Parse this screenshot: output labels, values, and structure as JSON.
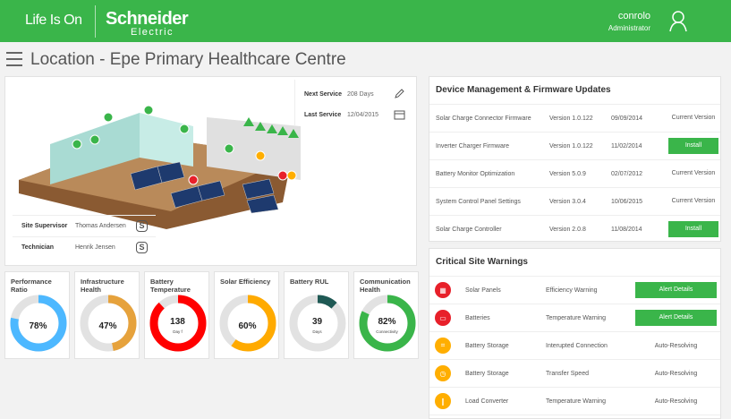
{
  "header": {
    "tagline": "Life Is On",
    "brand": "Schneider",
    "brand_sub": "Electric",
    "user_name": "conrolo",
    "user_role": "Administrator"
  },
  "page": {
    "title": "Location - Epe Primary Healthcare Centre"
  },
  "site": {
    "next_service_label": "Next Service",
    "next_service_value": "208 Days",
    "last_service_label": "Last Service",
    "last_service_value": "12/04/2015",
    "people": [
      {
        "role": "Site Supervisor",
        "name": "Thomas Andersen"
      },
      {
        "role": "Technician",
        "name": "Henrik Jensen"
      }
    ]
  },
  "gauges": [
    {
      "title": "Performance Ratio",
      "value": "78%",
      "fraction": 0.78,
      "color": "#4db8ff",
      "sub": ""
    },
    {
      "title": "Infrastructure Health",
      "value": "47%",
      "fraction": 0.47,
      "color": "#e6a23c",
      "sub": ""
    },
    {
      "title": "Battery Temperature",
      "value": "138",
      "fraction": 0.88,
      "color": "#ff0000",
      "sub": "Day f"
    },
    {
      "title": "Solar Efficiency",
      "value": "60%",
      "fraction": 0.6,
      "color": "#ffaa00",
      "sub": ""
    },
    {
      "title": "Battery RUL",
      "value": "39",
      "fraction": 0.12,
      "color": "#1f5954",
      "sub": "Days"
    },
    {
      "title": "Communication Health",
      "value": "82%",
      "fraction": 0.82,
      "color": "#3ab54a",
      "sub": "Connectivity"
    }
  ],
  "devices": {
    "title": "Device Management & Firmware Updates",
    "rows": [
      {
        "name": "Solar Charge Connector Firmware",
        "version": "Version 1.0.122",
        "date": "09/09/2014",
        "status": "Current Version",
        "action": false
      },
      {
        "name": "Inverter Charger Firmware",
        "version": "Version 1.0.122",
        "date": "11/02/2014",
        "status": "Install",
        "action": true
      },
      {
        "name": "Battery Monitor Optimization",
        "version": "Version 5.0.9",
        "date": "02/07/2012",
        "status": "Current Version",
        "action": false
      },
      {
        "name": "System Control Panel Settings",
        "version": "Version 3.0.4",
        "date": "10/06/2015",
        "status": "Current Version",
        "action": false
      },
      {
        "name": "Solar Charge Controller",
        "version": "Version 2.0.8",
        "date": "11/08/2014",
        "status": "Install",
        "action": true
      }
    ]
  },
  "warnings": {
    "title": "Critical Site Warnings",
    "rows": [
      {
        "device": "Solar Panels",
        "issue": "Efficiency Warning",
        "status": "Alert Details",
        "action": true,
        "color": "#e8202a",
        "icon": "solar-panel-icon"
      },
      {
        "device": "Batteries",
        "issue": "Temperature Warning",
        "status": "Alert Details",
        "action": true,
        "color": "#e8202a",
        "icon": "battery-icon"
      },
      {
        "device": "Battery Storage",
        "issue": "Interupted Connection",
        "status": "Auto-Resolving",
        "action": false,
        "color": "#ffae00",
        "icon": "connection-icon"
      },
      {
        "device": "Battery Storage",
        "issue": "Transfer Speed",
        "status": "Auto-Resolving",
        "action": false,
        "color": "#ffae00",
        "icon": "clock-icon"
      },
      {
        "device": "Load Converter",
        "issue": "Temperature Warning",
        "status": "Auto-Resolving",
        "action": false,
        "color": "#ffae00",
        "icon": "thermometer-icon"
      }
    ]
  }
}
